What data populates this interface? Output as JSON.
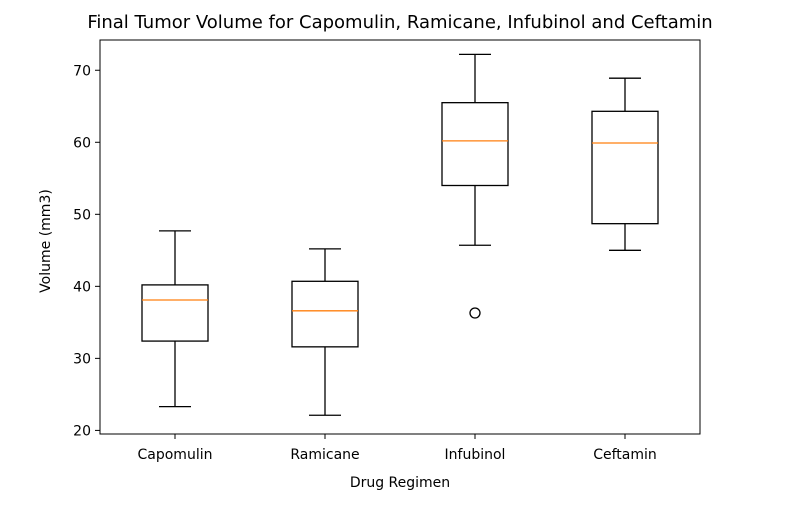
{
  "colors": {
    "box": "#000000",
    "median": "#ff7f0e",
    "background": "#ffffff"
  },
  "chart_data": {
    "type": "box",
    "title": "Final Tumor Volume for Capomulin, Ramicane, Infubinol and Ceftamin",
    "xlabel": "Drug Regimen",
    "ylabel": "Volume (mm3)",
    "ylim": [
      19.5,
      74.2
    ],
    "yticks": [
      20,
      30,
      40,
      50,
      60,
      70
    ],
    "grid": false,
    "categories": [
      "Capomulin",
      "Ramicane",
      "Infubinol",
      "Ceftamin"
    ],
    "boxes": [
      {
        "category": "Capomulin",
        "whisker_low": 23.3,
        "q1": 32.4,
        "median": 38.1,
        "q3": 40.2,
        "whisker_high": 47.7,
        "outliers": []
      },
      {
        "category": "Ramicane",
        "whisker_low": 22.1,
        "q1": 31.6,
        "median": 36.6,
        "q3": 40.7,
        "whisker_high": 45.2,
        "outliers": []
      },
      {
        "category": "Infubinol",
        "whisker_low": 45.7,
        "q1": 54.0,
        "median": 60.2,
        "q3": 65.5,
        "whisker_high": 72.2,
        "outliers": [
          36.3
        ]
      },
      {
        "category": "Ceftamin",
        "whisker_low": 45.0,
        "q1": 48.7,
        "median": 59.9,
        "q3": 64.3,
        "whisker_high": 68.9,
        "outliers": []
      }
    ]
  }
}
